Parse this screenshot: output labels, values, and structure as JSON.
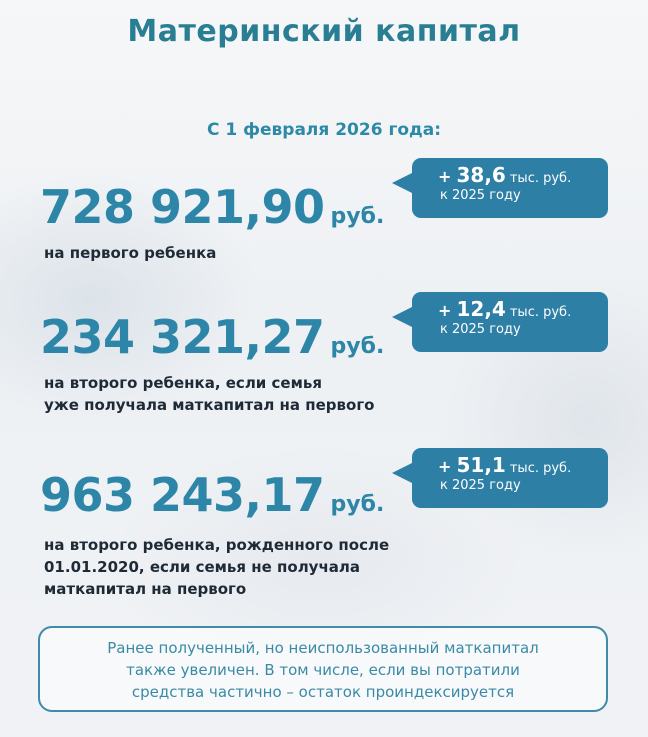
{
  "title": "Материнский капитал",
  "subtitle": "С 1 февраля 2026 года:",
  "currency": "руб.",
  "items": [
    {
      "amount": "728 921,90",
      "desc": [
        "на первого ребенка"
      ],
      "bubble": {
        "plus": "+",
        "delta": "38,6",
        "unit": "тыс. руб.",
        "period": "к 2025 году"
      }
    },
    {
      "amount": "234 321,27",
      "desc": [
        "на второго ребенка, если семья",
        "уже получала маткапитал на первого"
      ],
      "bubble": {
        "plus": "+",
        "delta": "12,4",
        "unit": "тыс. руб.",
        "period": "к 2025 году"
      }
    },
    {
      "amount": "963 243,17",
      "desc": [
        "на второго ребенка, рожденного после",
        "01.01.2020, если семья не получала",
        "маткапитал на первого"
      ],
      "bubble": {
        "plus": "+",
        "delta": "51,1",
        "unit": "тыс. руб.",
        "period": "к 2025 году"
      }
    }
  ],
  "note": [
    "Ранее полученный, но неиспользованный маткапитал",
    "также увеличен. В том числе, если вы потратили",
    "средства частично – остаток проиндексируется"
  ],
  "colors": {
    "accent": "#2d86a8",
    "bubble": "#2d7fa6",
    "title": "#2a7e93",
    "text": "#1e2a36"
  }
}
